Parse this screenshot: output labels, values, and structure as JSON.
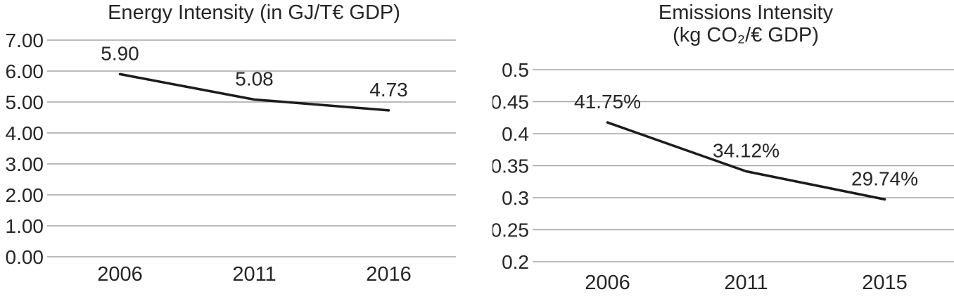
{
  "chart_data": [
    {
      "type": "line",
      "title": "Energy Intensity (in GJ/T€ GDP)",
      "title_lines": [
        "Energy Intensity (in GJ/T€ GDP)"
      ],
      "categories": [
        "2006",
        "2011",
        "2016"
      ],
      "values": [
        5.9,
        5.08,
        4.73
      ],
      "data_labels": [
        "5.90",
        "5.08",
        "4.73"
      ],
      "xlabel": "",
      "ylabel": "",
      "ylim": [
        0,
        7
      ],
      "ytick_labels": [
        "0.00",
        "1.00",
        "2.00",
        "3.00",
        "4.00",
        "5.00",
        "6.00",
        "7.00"
      ],
      "grid": true,
      "legend": "none",
      "line_color": "#1c1c1c",
      "grid_color": "#a6a6a6",
      "text_color": "#262626"
    },
    {
      "type": "line",
      "title": "Emissions Intensity (kg CO₂/€ GDP)",
      "title_lines": [
        "Emissions Intensity",
        "(kg CO₂/€ GDP)"
      ],
      "categories": [
        "2006",
        "2011",
        "2015"
      ],
      "values": [
        0.4175,
        0.3412,
        0.2974
      ],
      "data_labels": [
        "41.75%",
        "34.12%",
        "29.74%"
      ],
      "xlabel": "",
      "ylabel": "",
      "ylim": [
        0.2,
        0.5
      ],
      "ytick_labels": [
        "0.2",
        "0.25",
        "0.3",
        "0.35",
        "0.4",
        "0.45",
        "0.5"
      ],
      "grid": true,
      "legend": "none",
      "line_color": "#1c1c1c",
      "grid_color": "#a6a6a6",
      "text_color": "#262626"
    }
  ]
}
